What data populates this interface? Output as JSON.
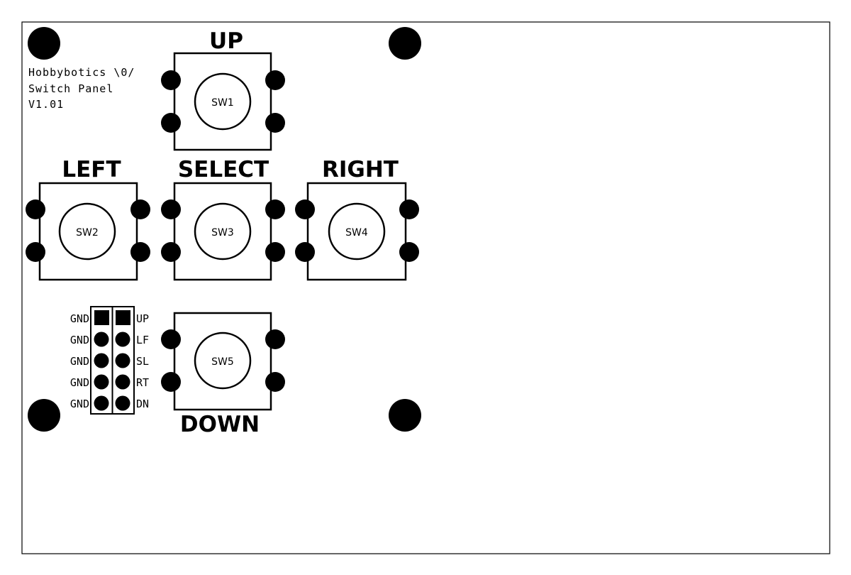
{
  "board": {
    "title_lines": [
      "Hobbybotics \\0/",
      "Switch Panel",
      "V1.01"
    ]
  },
  "switches": [
    {
      "id": "SW1",
      "label": "UP",
      "label_position": "above"
    },
    {
      "id": "SW2",
      "label": "LEFT",
      "label_position": "above"
    },
    {
      "id": "SW3",
      "label": "SELECT",
      "label_position": "above"
    },
    {
      "id": "SW4",
      "label": "RIGHT",
      "label_position": "above"
    },
    {
      "id": "SW5",
      "label": "DOWN",
      "label_position": "below"
    }
  ],
  "header": {
    "left_labels": [
      "GND",
      "GND",
      "GND",
      "GND",
      "GND"
    ],
    "right_labels": [
      "UP",
      "LF",
      "SL",
      "RT",
      "DN"
    ]
  },
  "colors": {
    "ink": "#000000",
    "background": "#ffffff"
  }
}
